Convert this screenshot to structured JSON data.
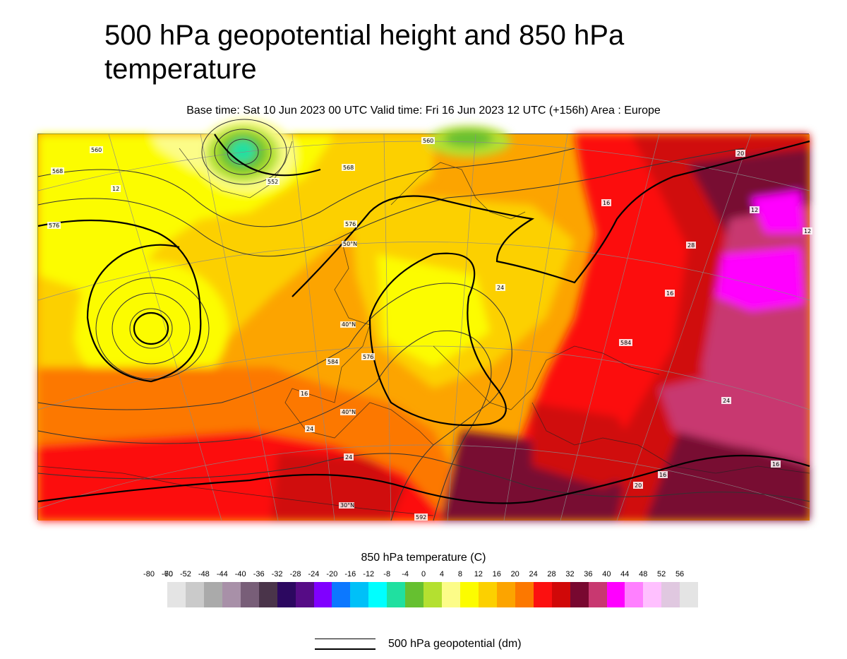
{
  "title": "500 hPa geopotential height and 850 hPa temperature",
  "subtitle": "Base time: Sat 10 Jun 2023 00 UTC Valid time: Fri 16 Jun 2023 12 UTC (+156h) Area : Europe",
  "map": {
    "contour_labels": [
      "560",
      "568",
      "552",
      "560",
      "576",
      "568",
      "576",
      "584",
      "576",
      "584",
      "592",
      "12",
      "16",
      "16",
      "16",
      "20",
      "24",
      "24",
      "24",
      "20",
      "24",
      "16",
      "28",
      "12",
      "12",
      "16"
    ],
    "graticule_labels": [
      "50°N",
      "40°N",
      "40°N",
      "30°N"
    ]
  },
  "legend": {
    "title": "850 hPa temperature (C)",
    "ticks": [
      "-80",
      "-70",
      "-60",
      "-52",
      "-48",
      "-44",
      "-40",
      "-36",
      "-32",
      "-28",
      "-24",
      "-20",
      "-16",
      "-12",
      "-8",
      "-4",
      "0",
      "4",
      "8",
      "12",
      "16",
      "20",
      "24",
      "28",
      "32",
      "36",
      "40",
      "44",
      "48",
      "52",
      "56"
    ],
    "colors": [
      "#e4e4e4",
      "#cacaca",
      "#aaaaaa",
      "#a890a8",
      "#785e78",
      "#4a344a",
      "#2c0860",
      "#560c86",
      "#8000ff",
      "#0c78ff",
      "#00c0f8",
      "#00ffff",
      "#20e0a0",
      "#66c030",
      "#b4e030",
      "#fcfc88",
      "#fcfc00",
      "#fcd000",
      "#fca400",
      "#fc7800",
      "#fc1010",
      "#d00808",
      "#780830",
      "#c83870",
      "#ff00ff",
      "#ff80ff",
      "#ffc0ff",
      "#e0c8e0",
      "#e4e4e4"
    ]
  },
  "line_legend": {
    "label": "500 hPa geopotential (dm)"
  }
}
